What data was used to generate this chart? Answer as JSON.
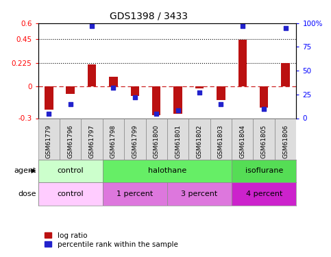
{
  "title": "GDS1398 / 3433",
  "samples": [
    "GSM61779",
    "GSM61796",
    "GSM61797",
    "GSM61798",
    "GSM61799",
    "GSM61800",
    "GSM61801",
    "GSM61802",
    "GSM61803",
    "GSM61804",
    "GSM61805",
    "GSM61806"
  ],
  "log_ratio": [
    -0.22,
    -0.07,
    0.21,
    0.09,
    -0.09,
    -0.27,
    -0.26,
    -0.02,
    -0.13,
    0.44,
    -0.2,
    0.225
  ],
  "percentile_rank": [
    5,
    15,
    97,
    32,
    22,
    5,
    8,
    27,
    15,
    97,
    10,
    95
  ],
  "ylim_left": [
    -0.3,
    0.6
  ],
  "ylim_right": [
    0,
    100
  ],
  "yticks_left": [
    -0.3,
    0,
    0.225,
    0.45,
    0.6
  ],
  "yticks_right": [
    0,
    25,
    50,
    75,
    100
  ],
  "hlines": [
    0.45,
    0.225
  ],
  "bar_color": "#bb1111",
  "dot_color": "#2222cc",
  "zero_line_color": "#cc2222",
  "agent_groups": [
    {
      "label": "control",
      "start": 0,
      "end": 3,
      "color": "#ccffcc"
    },
    {
      "label": "halothane",
      "start": 3,
      "end": 9,
      "color": "#55dd55"
    },
    {
      "label": "isoflurane",
      "start": 9,
      "end": 12,
      "color": "#55dd55"
    }
  ],
  "dose_groups": [
    {
      "label": "control",
      "start": 0,
      "end": 3,
      "color": "#ffccff"
    },
    {
      "label": "1 percent",
      "start": 3,
      "end": 6,
      "color": "#dd66dd"
    },
    {
      "label": "3 percent",
      "start": 6,
      "end": 9,
      "color": "#dd66dd"
    },
    {
      "label": "4 percent",
      "start": 9,
      "end": 12,
      "color": "#cc33cc"
    }
  ],
  "legend_red": "log ratio",
  "legend_blue": "percentile rank within the sample",
  "bg_color": "#ffffff"
}
